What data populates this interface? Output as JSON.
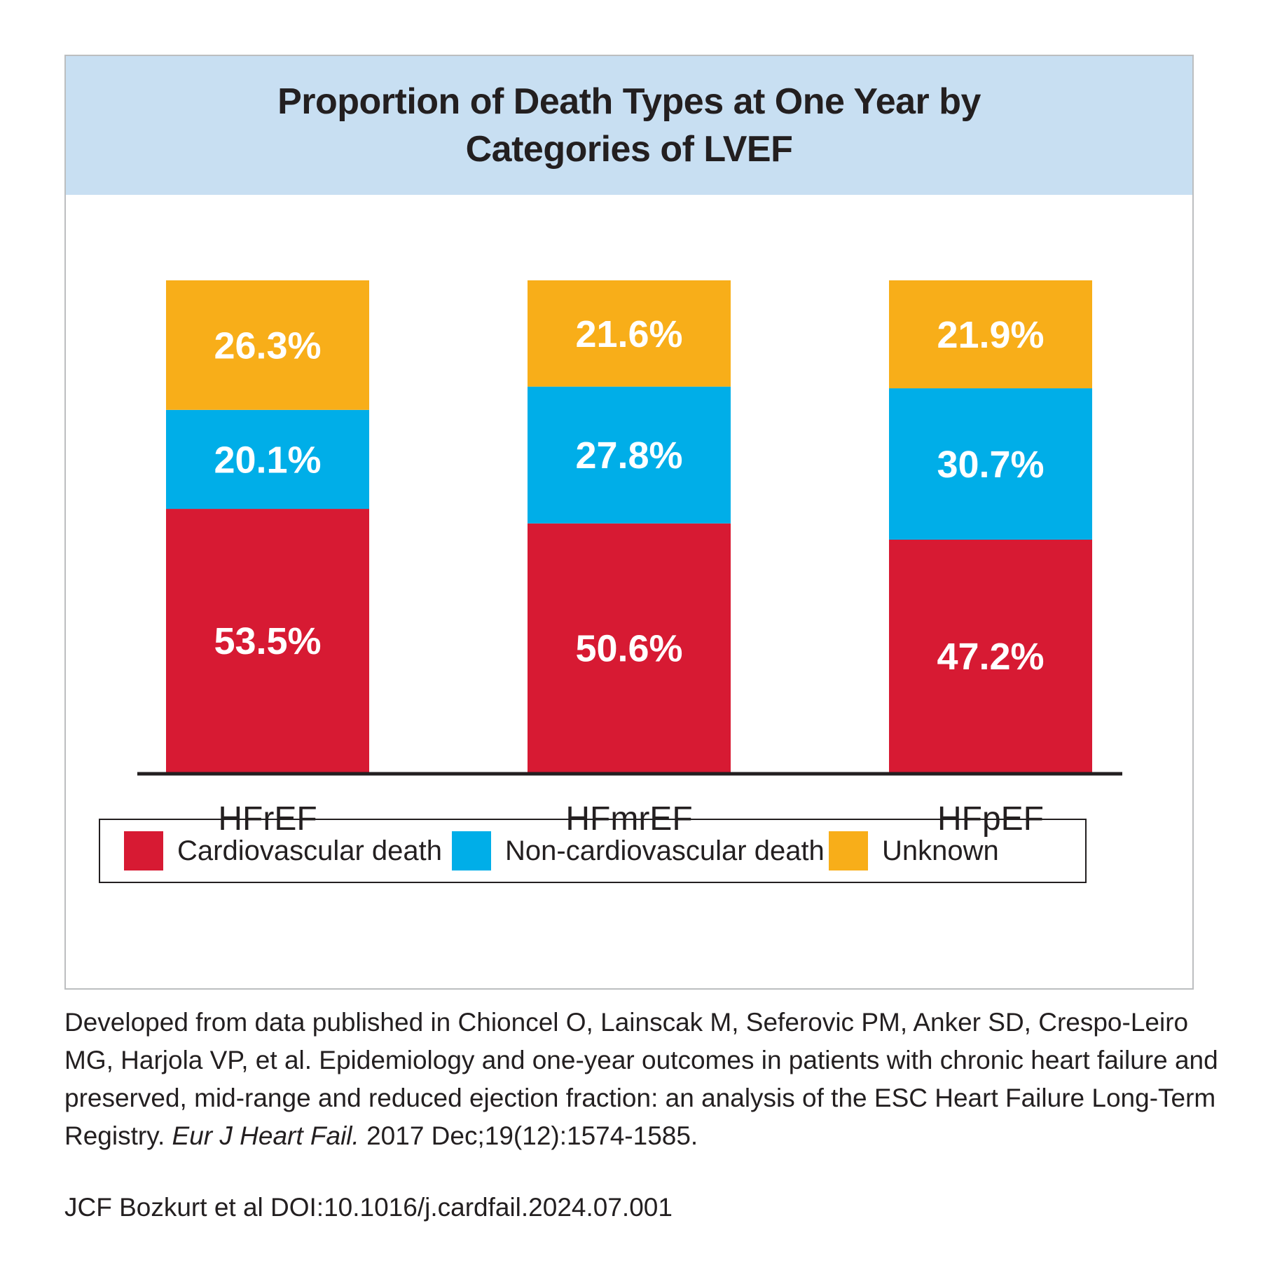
{
  "chart_data": {
    "type": "bar",
    "stacked": true,
    "title": "Proportion of Death Types at One Year by Categories of LVEF",
    "categories": [
      "HFrEF",
      "HFmrEF",
      "HFpEF"
    ],
    "series": [
      {
        "name": "Cardiovascular death",
        "values": [
          53.5,
          50.6,
          47.2
        ],
        "labels": [
          "53.5%",
          "50.6%",
          "47.2%"
        ],
        "color": "#d71a33"
      },
      {
        "name": "Non-cardiovascular death",
        "values": [
          20.1,
          27.8,
          30.7
        ],
        "labels": [
          "20.1%",
          "27.8%",
          "30.7%"
        ],
        "color": "#00aee8"
      },
      {
        "name": "Unknown",
        "values": [
          26.3,
          21.6,
          21.9
        ],
        "labels": [
          "26.3%",
          "21.6%",
          "21.9%"
        ],
        "color": "#f8ae19"
      }
    ],
    "ylim": [
      0,
      100
    ],
    "grid": false,
    "legend_position": "bottom"
  },
  "citation": {
    "text_before": "Developed from data published in Chioncel O, Lainscak M, Seferovic PM, Anker SD, Crespo-Leiro MG, Harjola VP, et al. Epidemiology and one-year outcomes in patients with chronic heart failure and preserved, mid-range and reduced ejection fraction: an analysis of the ESC Heart Failure Long-Term Registry. ",
    "journal": "Eur J Heart Fail.",
    "text_after": " 2017 Dec;19(12):1574-1585."
  },
  "doi_line": "JCF Bozkurt et al  DOI:10.1016/j.cardfail.2024.07.001",
  "colors": {
    "title_band": "#c8dff2",
    "panel_border": "#bcbec0",
    "axis": "#231f20",
    "bar_label_text": "#ffffff"
  }
}
